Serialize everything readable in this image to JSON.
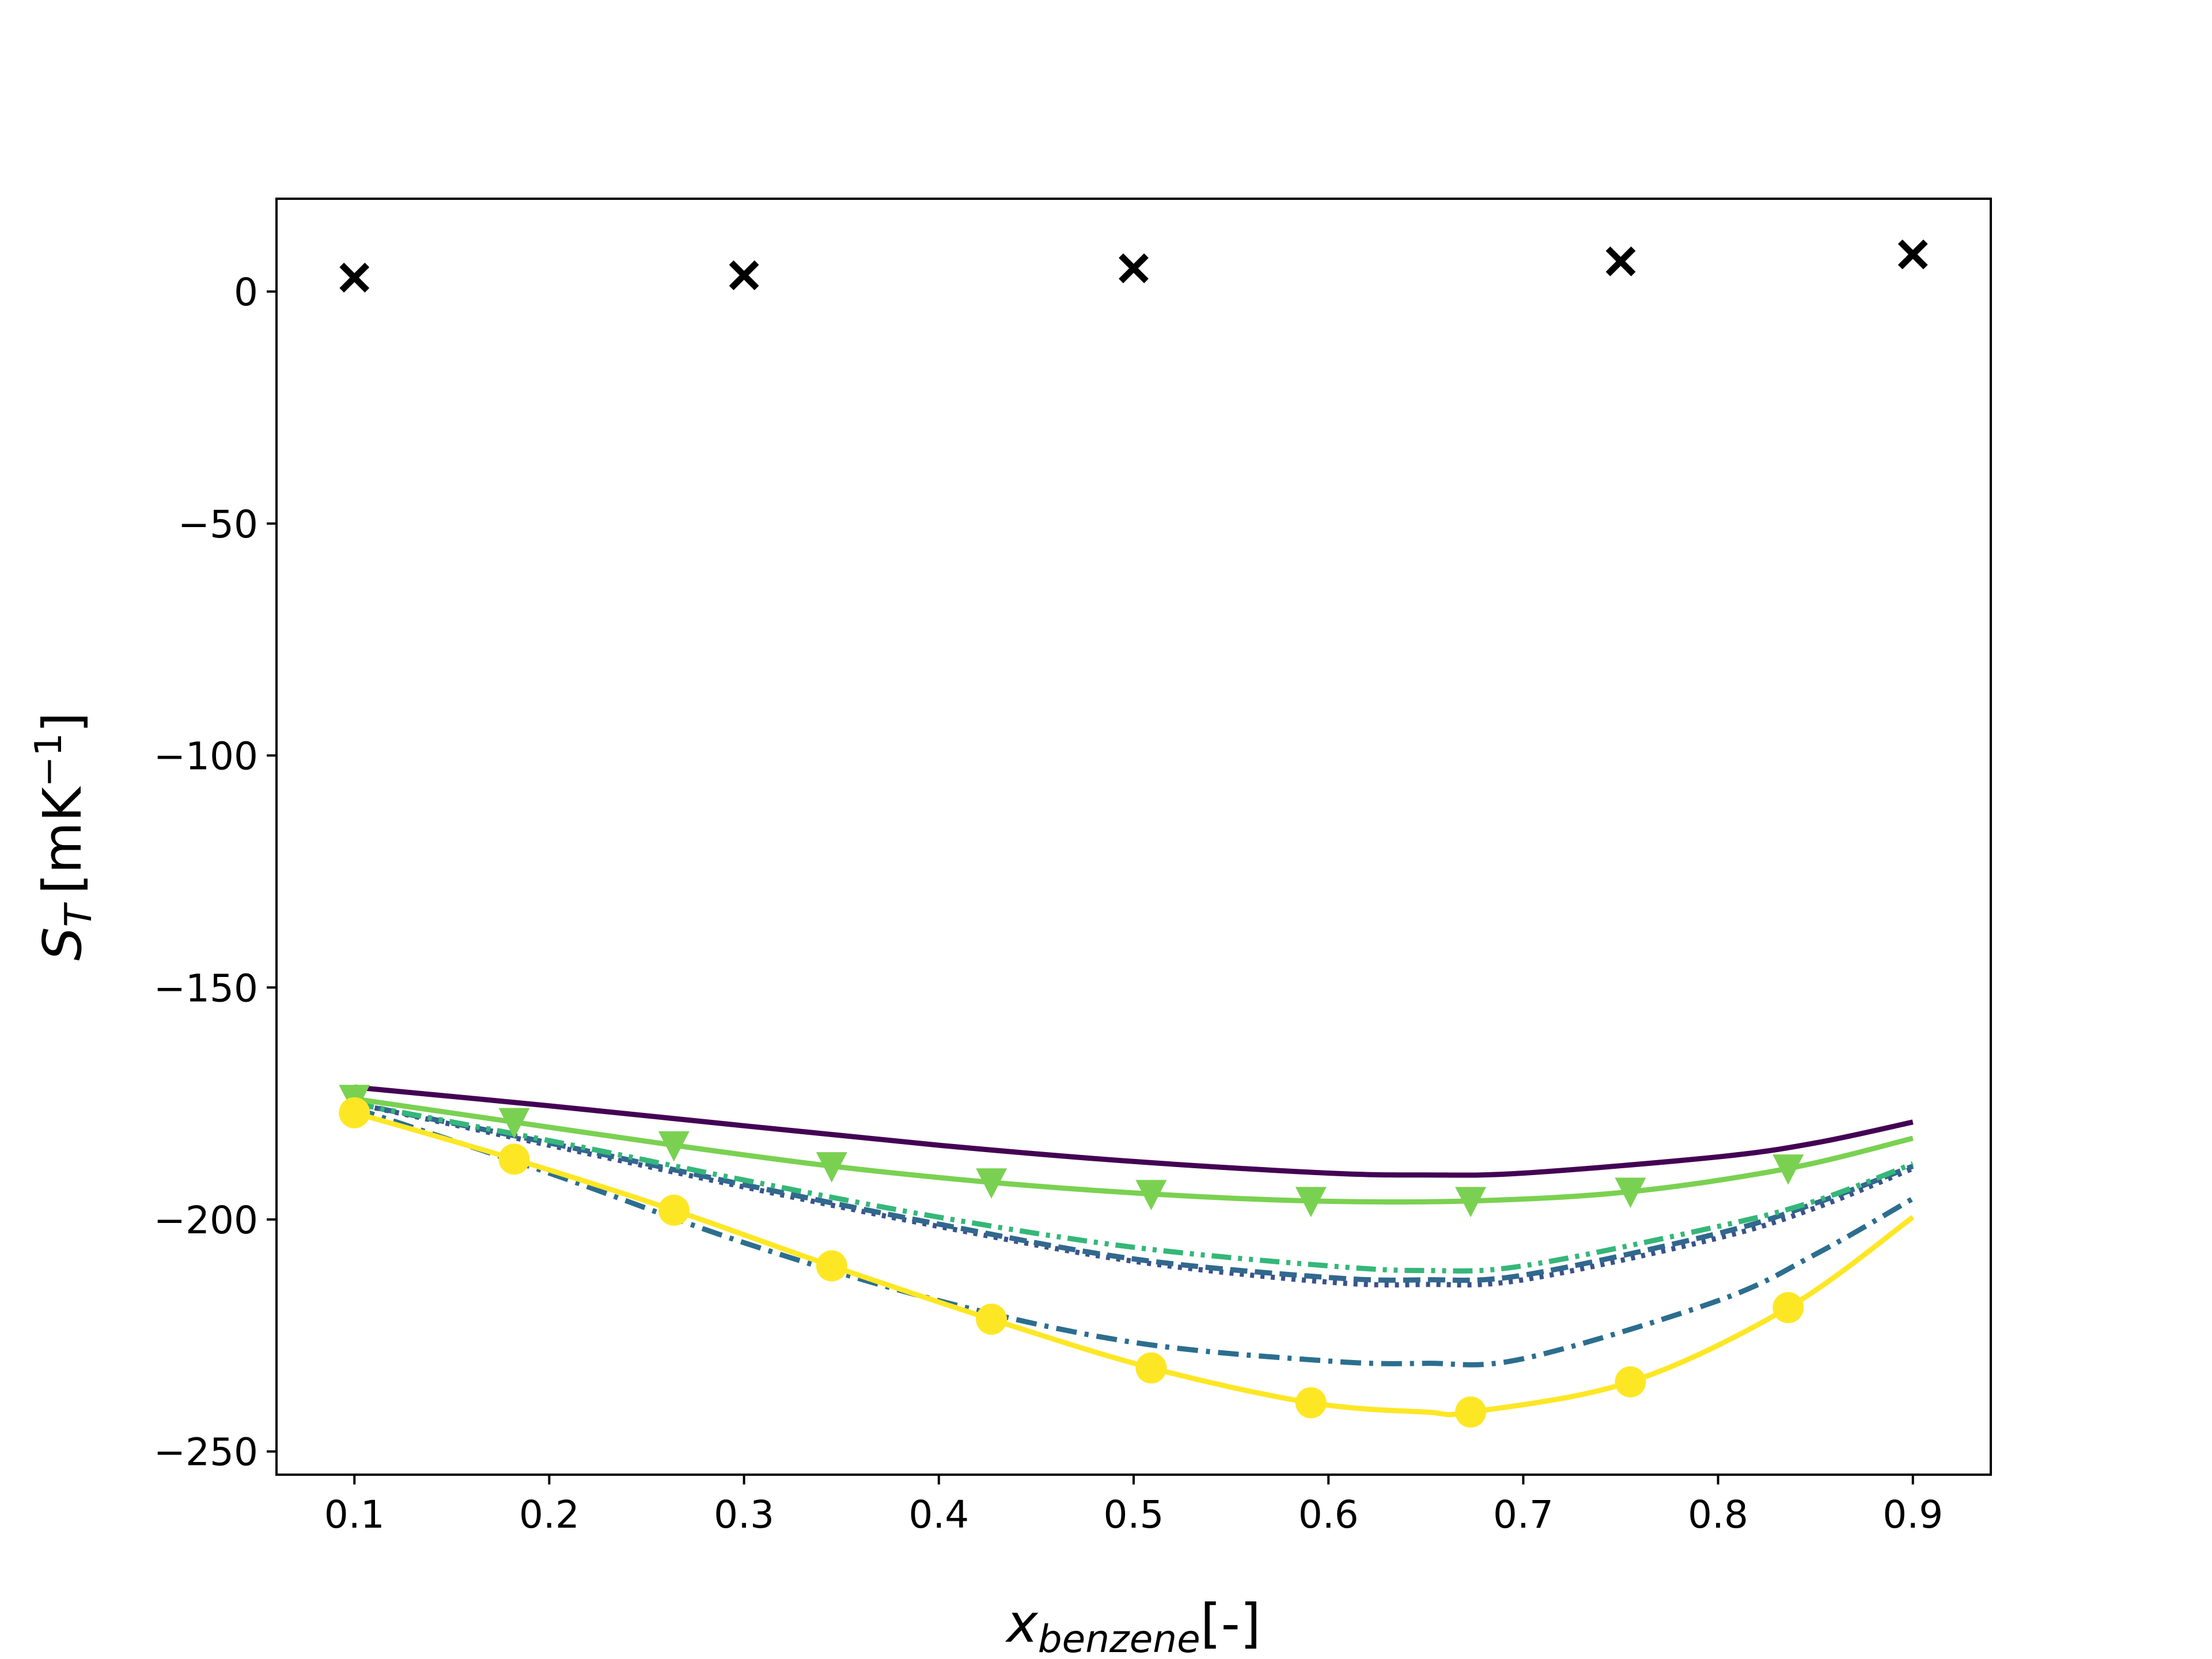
{
  "chart_data": {
    "type": "line",
    "title": "",
    "xlabel": "x",
    "xlabel_sub": "benzene",
    "xlabel_suffix": "[-]",
    "ylabel": "S",
    "ylabel_sub": "T",
    "ylabel_unit": "[mK",
    "ylabel_sup": "−1",
    "ylabel_close": "]",
    "xlim": [
      0.06,
      0.94
    ],
    "ylim": [
      -255,
      20
    ],
    "xticks": [
      0.1,
      0.2,
      0.3,
      0.4,
      0.5,
      0.6,
      0.7,
      0.8,
      0.9
    ],
    "xtick_labels": [
      "0.1",
      "0.2",
      "0.3",
      "0.4",
      "0.5",
      "0.6",
      "0.7",
      "0.8",
      "0.9"
    ],
    "yticks": [
      0,
      -50,
      -100,
      -150,
      -200,
      -250
    ],
    "ytick_labels": [
      "0",
      "−50",
      "−100",
      "−150",
      "−200",
      "−250"
    ],
    "grid": false,
    "series": [
      {
        "style": "solid",
        "color": "#440154",
        "marker": "none",
        "x": [
          0.1,
          0.2,
          0.3,
          0.4,
          0.5,
          0.6,
          0.65,
          0.7,
          0.8,
          0.85,
          0.9
        ],
        "y": [
          -171.5,
          -175.5,
          -179.8,
          -184,
          -187.5,
          -190,
          -190.4,
          -190,
          -186.5,
          -183.5,
          -179
        ]
      },
      {
        "style": "dotted",
        "color": "#3b528b",
        "marker": "none",
        "x": [
          0.1,
          0.2,
          0.3,
          0.4,
          0.5,
          0.6,
          0.65,
          0.7,
          0.8,
          0.85,
          0.9
        ],
        "y": [
          -175,
          -184,
          -193,
          -201.5,
          -209,
          -213.5,
          -214,
          -213,
          -204,
          -197.5,
          -189
        ]
      },
      {
        "style": "dashed",
        "color": "#31688e",
        "marker": "none",
        "x": [
          0.1,
          0.2,
          0.3,
          0.4,
          0.5,
          0.6,
          0.65,
          0.7,
          0.8,
          0.85,
          0.9
        ],
        "y": [
          -175,
          -183.5,
          -192.5,
          -201,
          -208.5,
          -212.5,
          -213,
          -212,
          -203,
          -196.5,
          -188.5
        ]
      },
      {
        "style": "dashdot",
        "color": "#2c6e8f",
        "marker": "none",
        "x": [
          0.1,
          0.2,
          0.3,
          0.4,
          0.5,
          0.6,
          0.65,
          0.7,
          0.8,
          0.85,
          0.9
        ],
        "y": [
          -176,
          -190,
          -205,
          -217.5,
          -226.5,
          -230.5,
          -231,
          -230,
          -217.5,
          -207.5,
          -195.5
        ]
      },
      {
        "style": "dashdotdot",
        "color": "#35b779",
        "marker": "none",
        "x": [
          0.1,
          0.2,
          0.3,
          0.4,
          0.5,
          0.6,
          0.65,
          0.7,
          0.8,
          0.85,
          0.9
        ],
        "y": [
          -175,
          -183,
          -191.5,
          -199.5,
          -206,
          -210,
          -211,
          -210,
          -201.5,
          -196,
          -188
        ]
      },
      {
        "style": "solid",
        "color": "#7ad151",
        "marker": "triangle_down",
        "x": [
          0.1,
          0.182,
          0.264,
          0.345,
          0.427,
          0.509,
          0.591,
          0.673,
          0.755,
          0.836,
          0.9
        ],
        "y": [
          -174,
          -179,
          -184,
          -188.5,
          -192,
          -194.5,
          -196,
          -196,
          -194,
          -189,
          -182.5
        ],
        "marker_x": [
          0.1,
          0.182,
          0.264,
          0.345,
          0.427,
          0.509,
          0.591,
          0.673,
          0.755,
          0.836
        ],
        "marker_y": [
          -174,
          -179,
          -184,
          -188.5,
          -192,
          -194.5,
          -196,
          -196,
          -194,
          -189
        ]
      },
      {
        "style": "solid",
        "color": "#fde725",
        "marker": "circle",
        "x": [
          0.1,
          0.182,
          0.264,
          0.345,
          0.427,
          0.509,
          0.591,
          0.65,
          0.673,
          0.755,
          0.836,
          0.9
        ],
        "y": [
          -177,
          -187,
          -198,
          -210,
          -221.5,
          -232,
          -239.5,
          -241.5,
          -241.5,
          -235,
          -219,
          -199.5
        ],
        "marker_x": [
          0.1,
          0.182,
          0.264,
          0.345,
          0.427,
          0.509,
          0.591,
          0.673,
          0.755,
          0.836
        ],
        "marker_y": [
          -177,
          -187,
          -198,
          -210,
          -221.5,
          -232,
          -239.5,
          -241.5,
          -235,
          -219
        ]
      },
      {
        "style": "none",
        "color": "#000000",
        "marker": "x",
        "marker_x": [
          0.1,
          0.3,
          0.5,
          0.75,
          0.9
        ],
        "marker_y": [
          3,
          3.5,
          5,
          6.5,
          8
        ]
      }
    ]
  }
}
